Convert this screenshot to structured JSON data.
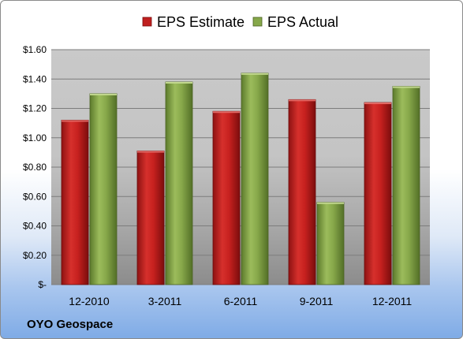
{
  "chart_data": {
    "type": "bar",
    "categories": [
      "12-2010",
      "3-2011",
      "6-2011",
      "9-2011",
      "12-2011"
    ],
    "series": [
      {
        "name": "EPS Estimate",
        "values": [
          1.12,
          0.91,
          1.18,
          1.26,
          1.24
        ],
        "color": "#c0201f"
      },
      {
        "name": "EPS Actual",
        "values": [
          1.3,
          1.38,
          1.44,
          0.56,
          1.35
        ],
        "color": "#86a84a"
      }
    ],
    "ylim": [
      0,
      1.6
    ],
    "yticks": [
      0,
      0.2,
      0.4,
      0.6,
      0.8,
      1.0,
      1.2,
      1.4,
      1.6
    ],
    "ytick_labels": [
      "$-",
      "$0.20",
      "$0.40",
      "$0.60",
      "$0.80",
      "$1.00",
      "$1.20",
      "$1.40",
      "$1.60"
    ],
    "legend_position": "top-center",
    "grid": true,
    "company": "OYO Geospace"
  }
}
